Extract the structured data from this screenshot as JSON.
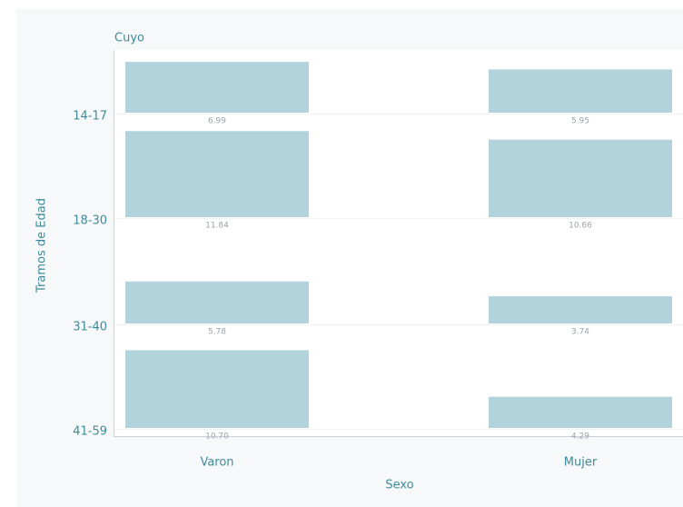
{
  "chart_data": {
    "type": "bar",
    "title": "Cuyo",
    "x_label": "Sexo",
    "y_label": "Tramos de Edad",
    "categories": [
      "14-17",
      "18-30",
      "31-40",
      "41-59"
    ],
    "series": [
      {
        "name": "Varon",
        "color": "#b3d3dc",
        "values": [
          6.99,
          11.84,
          5.78,
          10.7
        ],
        "value_labels": [
          "6.99",
          "11.84",
          "5.78",
          "10.70"
        ]
      },
      {
        "name": "Mujer",
        "color": "#b3d3dc",
        "values": [
          5.95,
          10.66,
          3.74,
          4.29
        ],
        "value_labels": [
          "5.95",
          "10.66",
          "3.74",
          "4.29"
        ]
      }
    ],
    "ylim": [
      0,
      13
    ]
  }
}
